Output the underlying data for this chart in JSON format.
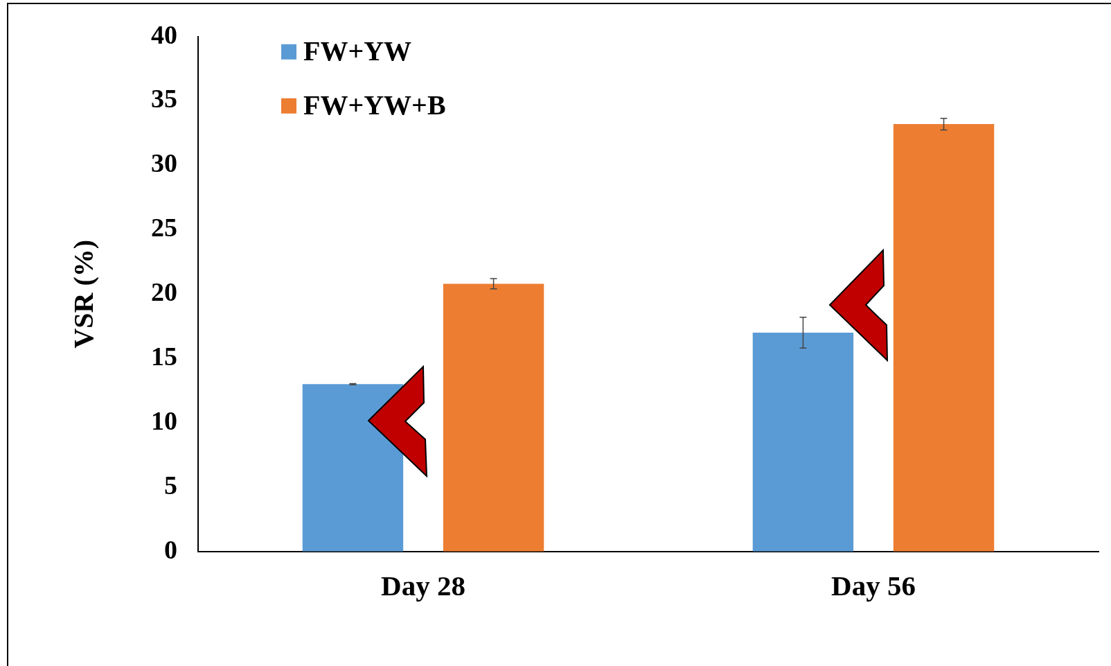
{
  "chart_data": {
    "type": "bar",
    "ylabel": "VSR (%)",
    "categories": [
      "Day 28",
      "Day 56"
    ],
    "series": [
      {
        "name": "FW+YW",
        "color": "#5b9bd5",
        "values": [
          13.0,
          17.0
        ],
        "errors": [
          0.05,
          1.2
        ]
      },
      {
        "name": "FW+YW+B",
        "color": "#ed7d31",
        "values": [
          20.8,
          33.2
        ],
        "errors": [
          0.4,
          0.45
        ]
      }
    ],
    "ylim": [
      0,
      40
    ],
    "yticks": [
      0,
      5,
      10,
      15,
      20,
      25,
      30,
      35,
      40
    ],
    "grid": false,
    "legend": "top left"
  }
}
